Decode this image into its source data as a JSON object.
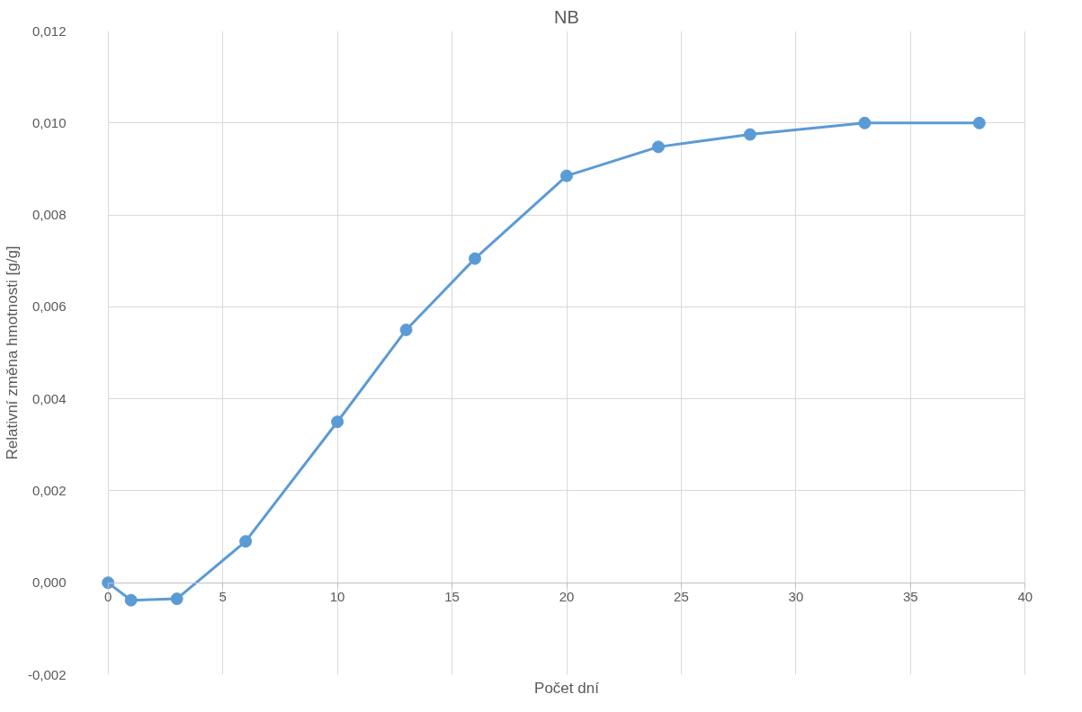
{
  "chart_data": {
    "type": "line",
    "title": "NB",
    "xlabel": "Počet dní",
    "ylabel": "Relativní změna hmotnosti [g/g]",
    "x": [
      0,
      1,
      3,
      6,
      10,
      13,
      16,
      20,
      24,
      28,
      33,
      38
    ],
    "series": [
      {
        "color": "#5b9bd5",
        "values": [
          0.0,
          -0.00038,
          -0.00035,
          0.0009,
          0.0035,
          0.0055,
          0.00705,
          0.00885,
          0.00948,
          0.00975,
          0.01,
          0.01
        ]
      }
    ],
    "xlim": [
      0,
      40
    ],
    "xticks": [
      0,
      5,
      10,
      15,
      20,
      25,
      30,
      35,
      40
    ],
    "ylim": [
      -0.002,
      0.012
    ],
    "yticks": [
      {
        "value": -0.002,
        "label": "-0,002"
      },
      {
        "value": 0,
        "label": "0,000"
      },
      {
        "value": 0.002,
        "label": "0,002"
      },
      {
        "value": 0.004,
        "label": "0,004"
      },
      {
        "value": 0.006,
        "label": "0,006"
      },
      {
        "value": 0.008,
        "label": "0,008"
      },
      {
        "value": 0.01,
        "label": "0,010"
      },
      {
        "value": 0.012,
        "label": "0,012"
      }
    ],
    "grid": true,
    "marker": "circle",
    "line_style": "solid"
  }
}
